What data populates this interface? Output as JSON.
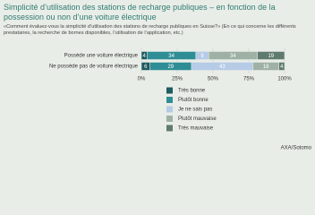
{
  "chart_data": {
    "type": "stacked-bar-horizontal",
    "title": "Simplicité d’utilisation des stations de recharge publiques – en fonction de la possession ou non d’une voiture électrique",
    "subtitle": "«Comment évaluez-vous la simplicité d’utilisation des stations de recharge publiques en Suisse?» (En ce qui concerne les différents prestataires, la recherche de bornes disponibles, l’utilisation de l’application, etc.)",
    "categories": [
      "Possède une voiture électrique",
      "Ne possède pas de voiture électrique"
    ],
    "series": [
      {
        "name": "Très bonne",
        "color": "#1f5b60",
        "values": [
          4,
          6
        ]
      },
      {
        "name": "Plutôt bonne",
        "color": "#2f8d96",
        "values": [
          34,
          29
        ]
      },
      {
        "name": "Je ne sais pas",
        "color": "#b5cbe6",
        "values": [
          9,
          43
        ]
      },
      {
        "name": "Plutôt mauvaise",
        "color": "#9fb1a5",
        "values": [
          34,
          18
        ]
      },
      {
        "name": "Très mauvaise",
        "color": "#5f7b6f",
        "values": [
          19,
          4
        ]
      }
    ],
    "xlim": [
      0,
      100
    ],
    "xticks": [
      {
        "value": 0,
        "label": "0%"
      },
      {
        "value": 25,
        "label": "25%"
      },
      {
        "value": 50,
        "label": "50%"
      },
      {
        "value": 75,
        "label": "75%"
      },
      {
        "value": 100,
        "label": "100%"
      }
    ],
    "grid": true,
    "source": "AXA/Sotomo"
  }
}
